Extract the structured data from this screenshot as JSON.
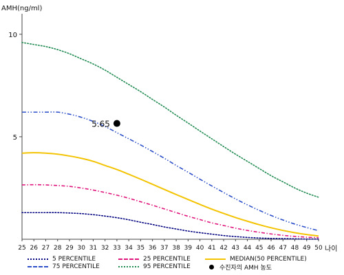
{
  "chart_data": {
    "type": "line",
    "ylabel": "AMH(ng/ml)",
    "xlabel": "나이",
    "x": [
      25,
      26,
      27,
      28,
      29,
      30,
      31,
      32,
      33,
      34,
      35,
      36,
      37,
      38,
      39,
      40,
      41,
      42,
      43,
      44,
      45,
      46,
      47,
      48,
      49,
      50
    ],
    "xlim": [
      25,
      50
    ],
    "ylim": [
      0,
      11
    ],
    "yticks": [
      5,
      10
    ],
    "grid": false,
    "legend_position": "bottom",
    "series": [
      {
        "name": "5 PERCENTILE",
        "color": "#000080",
        "style": "dotted",
        "values": [
          1.3,
          1.3,
          1.3,
          1.3,
          1.28,
          1.25,
          1.2,
          1.13,
          1.05,
          0.95,
          0.83,
          0.72,
          0.6,
          0.5,
          0.4,
          0.32,
          0.25,
          0.18,
          0.13,
          0.09,
          0.06,
          0.04,
          0.03,
          0.02,
          0.01,
          0.01
        ]
      },
      {
        "name": "25 PERCENTILE",
        "color": "#e0157c",
        "style": "dash-dot",
        "values": [
          2.65,
          2.66,
          2.65,
          2.62,
          2.58,
          2.5,
          2.4,
          2.28,
          2.15,
          2.0,
          1.83,
          1.66,
          1.48,
          1.3,
          1.12,
          0.96,
          0.8,
          0.67,
          0.54,
          0.43,
          0.34,
          0.26,
          0.19,
          0.14,
          0.1,
          0.08
        ]
      },
      {
        "name": "MEDIAN(50 PERCENTILE)",
        "color": "#f3c300",
        "style": "solid",
        "values": [
          4.2,
          4.22,
          4.2,
          4.15,
          4.06,
          3.95,
          3.8,
          3.6,
          3.4,
          3.17,
          2.93,
          2.68,
          2.43,
          2.18,
          1.94,
          1.7,
          1.47,
          1.26,
          1.06,
          0.88,
          0.71,
          0.56,
          0.43,
          0.32,
          0.23,
          0.16
        ]
      },
      {
        "name": "75 PERCENTILE",
        "color": "#2c4fc9",
        "style": "dash-dot-dot",
        "values": [
          6.2,
          6.2,
          6.2,
          6.2,
          6.1,
          5.95,
          5.75,
          5.5,
          5.2,
          4.9,
          4.6,
          4.28,
          3.95,
          3.6,
          3.27,
          2.93,
          2.6,
          2.28,
          1.97,
          1.68,
          1.41,
          1.16,
          0.94,
          0.74,
          0.57,
          0.42
        ]
      },
      {
        "name": "95 PERCENTILE",
        "color": "#1e8a50",
        "style": "dotted",
        "values": [
          9.6,
          9.5,
          9.4,
          9.25,
          9.05,
          8.8,
          8.55,
          8.25,
          7.9,
          7.55,
          7.2,
          6.82,
          6.45,
          6.05,
          5.67,
          5.28,
          4.9,
          4.52,
          4.15,
          3.8,
          3.45,
          3.1,
          2.8,
          2.5,
          2.25,
          2.05
        ]
      }
    ],
    "marker": {
      "name": "수진자의 AMH 농도",
      "x": 33,
      "y": 5.65,
      "label": "5.65",
      "color": "#000000"
    }
  }
}
